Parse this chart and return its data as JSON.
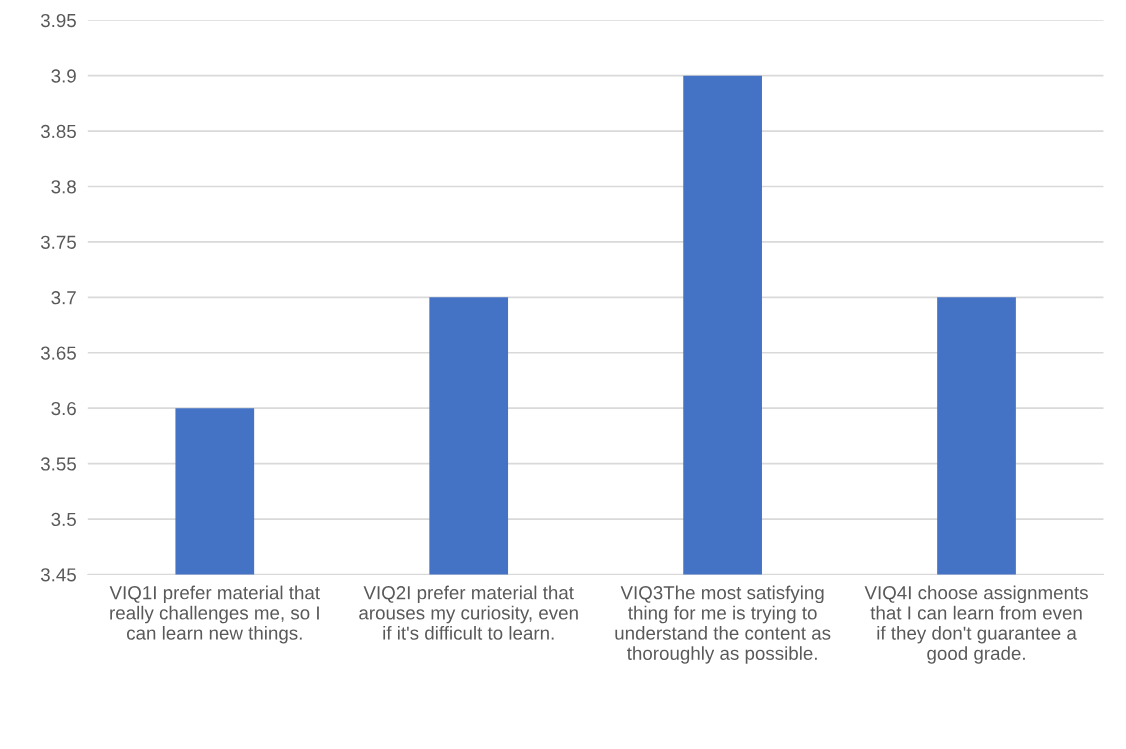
{
  "chart_data": {
    "type": "bar",
    "categories": [
      "VIQ1I prefer material that really challenges me, so I can learn new things.",
      "VIQ2I prefer material that arouses my curiosity, even if it's difficult to learn.",
      "VIQ3The most satisfying thing for me is trying to understand the content as thoroughly as possible.",
      "VIQ4I choose assignments that I can learn from even if they don't guarantee a good grade."
    ],
    "values": [
      3.6,
      3.7,
      3.9,
      3.7
    ],
    "color": "#4472c4",
    "ylim": [
      3.45,
      3.95
    ],
    "yticks": [
      3.45,
      3.5,
      3.55,
      3.6,
      3.65,
      3.7,
      3.75,
      3.8,
      3.85,
      3.9,
      3.95
    ],
    "grid": "y",
    "legend": false
  }
}
